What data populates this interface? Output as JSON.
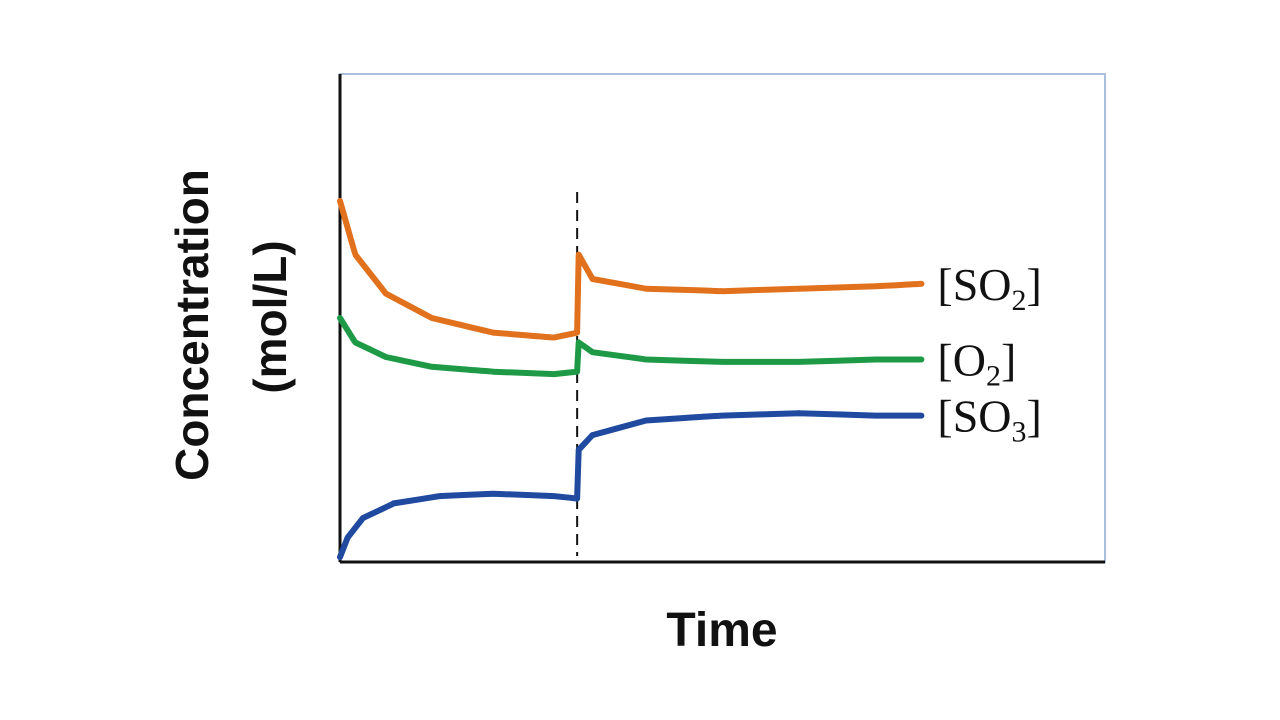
{
  "chart_data": {
    "type": "line",
    "title": "",
    "xlabel": "Time",
    "ylabel_lines": [
      "Concentration",
      "(mol/L)"
    ],
    "x_ticks": false,
    "y_ticks": false,
    "grid": false,
    "event_marker": {
      "style": "dashed-vertical",
      "x": 0.31
    },
    "xlim": [
      0,
      1
    ],
    "ylim": [
      0,
      1
    ],
    "series": [
      {
        "name_base": "SO",
        "name_sub": "2",
        "label": "[SO2]",
        "color": "#e2711d",
        "x": [
          0.0,
          0.02,
          0.06,
          0.12,
          0.2,
          0.28,
          0.31,
          0.312,
          0.33,
          0.4,
          0.5,
          0.6,
          0.7,
          0.76
        ],
        "y": [
          0.74,
          0.63,
          0.55,
          0.5,
          0.47,
          0.46,
          0.47,
          0.63,
          0.58,
          0.56,
          0.555,
          0.56,
          0.565,
          0.57
        ]
      },
      {
        "name_base": "O",
        "name_sub": "2",
        "label": "[O2]",
        "color": "#1e9a46",
        "x": [
          0.0,
          0.02,
          0.06,
          0.12,
          0.2,
          0.28,
          0.31,
          0.312,
          0.33,
          0.4,
          0.5,
          0.6,
          0.7,
          0.76
        ],
        "y": [
          0.5,
          0.45,
          0.42,
          0.4,
          0.39,
          0.385,
          0.39,
          0.45,
          0.43,
          0.415,
          0.41,
          0.41,
          0.415,
          0.415
        ]
      },
      {
        "name_base": "SO",
        "name_sub": "3",
        "label": "[SO3]",
        "color": "#1f4aa0",
        "x": [
          0.0,
          0.01,
          0.03,
          0.07,
          0.13,
          0.2,
          0.28,
          0.31,
          0.312,
          0.33,
          0.4,
          0.5,
          0.6,
          0.7,
          0.76
        ],
        "y": [
          0.01,
          0.05,
          0.09,
          0.12,
          0.135,
          0.14,
          0.135,
          0.13,
          0.23,
          0.26,
          0.29,
          0.3,
          0.305,
          0.3,
          0.3
        ]
      }
    ]
  }
}
